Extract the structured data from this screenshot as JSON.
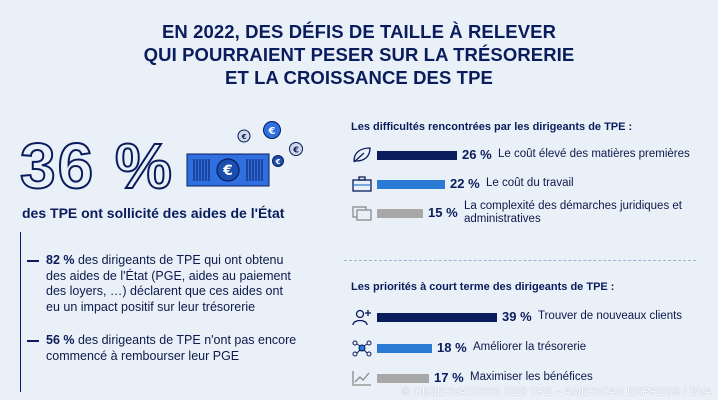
{
  "header": {
    "title_line1": "EN 2022, DES DÉFIS DE TAILLE À RELEVER",
    "title_line2": "QUI POURRAIENT PESER SUR LA TRÉSORERIE",
    "title_line3": "ET LA CROISSANCE DES TPE"
  },
  "left": {
    "big_stat": "36 %",
    "big_stat_label": "des TPE ont sollicité des aides de l'État",
    "note1_value": "82 %",
    "note1_text": " des dirigeants de TPE qui ont obtenu des aides de l'État (PGE, aides au paiement des loyers, …) déclarent que ces aides ont eu un impact positif sur leur trésorerie",
    "note2_value": "56 %",
    "note2_text": " des dirigeants de TPE n'ont pas encore commencé à rembourser leur PGE",
    "coin_symbol": "€"
  },
  "chart_data": [
    {
      "type": "bar",
      "title": "Les difficultés rencontrées par les dirigeants de TPE :",
      "categories": [
        "Le coût élevé des matières premières",
        "Le coût du travail",
        "La complexité des démarches juridiques et administratives"
      ],
      "values": [
        26,
        22,
        15
      ],
      "labels": [
        "26 %",
        "22 %",
        "15 %"
      ],
      "colors": [
        "#0a1c5c",
        "#2b7bd4",
        "#a8a8a8"
      ],
      "icons": [
        "leaf-icon",
        "briefcase-icon",
        "folders-icon"
      ]
    },
    {
      "type": "bar",
      "title": "Les priorités à court terme des dirigeants de TPE :",
      "categories": [
        "Trouver de nouveaux clients",
        "Améliorer la trésorerie",
        "Maximiser les bénéfices"
      ],
      "values": [
        39,
        18,
        17
      ],
      "labels": [
        "39 %",
        "18 %",
        "17 %"
      ],
      "colors": [
        "#0a1c5c",
        "#2b7bd4",
        "#a8a8a8"
      ],
      "icons": [
        "add-user-icon",
        "network-icon",
        "growth-chart-icon"
      ]
    }
  ],
  "footer": {
    "credit": "© OBSERVATOIRE DES TPE – AMERICAN EXPRESS / BVA"
  }
}
